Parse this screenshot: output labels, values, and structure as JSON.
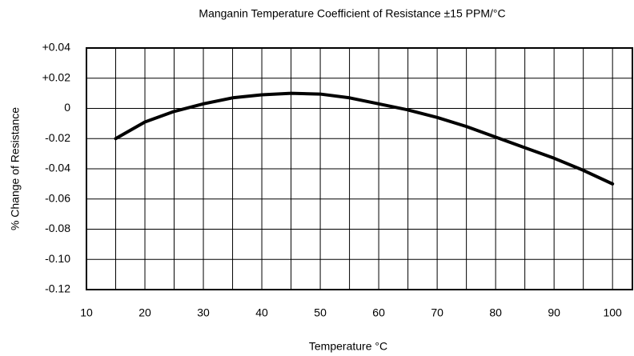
{
  "chart_data": {
    "type": "line",
    "title": "Manganin Temperature Coefficient of Resistance ±15 PPM/°C",
    "x_label": "Temperature °C",
    "y_label": "% Change of Resistance",
    "x": [
      15,
      20,
      25,
      30,
      35,
      40,
      45,
      50,
      55,
      60,
      65,
      70,
      75,
      80,
      85,
      90,
      95,
      100
    ],
    "series": [
      {
        "color": "#000000",
        "values": [
          -0.02,
          -0.009,
          -0.002,
          0.003,
          0.007,
          0.009,
          0.01,
          0.0095,
          0.007,
          0.003,
          -0.001,
          -0.006,
          -0.012,
          -0.019,
          -0.026,
          -0.033,
          -0.041,
          -0.05
        ]
      }
    ],
    "xlim": [
      10,
      103.4
    ],
    "xticks": [
      10,
      20,
      30,
      40,
      50,
      60,
      70,
      80,
      90,
      100
    ],
    "xgrid": [
      15,
      20,
      25,
      30,
      35,
      40,
      45,
      50,
      55,
      60,
      65,
      70,
      75,
      80,
      85,
      90,
      95,
      100
    ],
    "ylim": [
      -0.12,
      0.04
    ],
    "yticks": [
      {
        "value": 0.04,
        "label": "+0.04"
      },
      {
        "value": 0.02,
        "label": "+0.02"
      },
      0,
      -0.02,
      -0.04,
      -0.06,
      -0.08,
      {
        "value": -0.1,
        "label": "-0.10"
      },
      -0.12
    ],
    "grid": true
  }
}
